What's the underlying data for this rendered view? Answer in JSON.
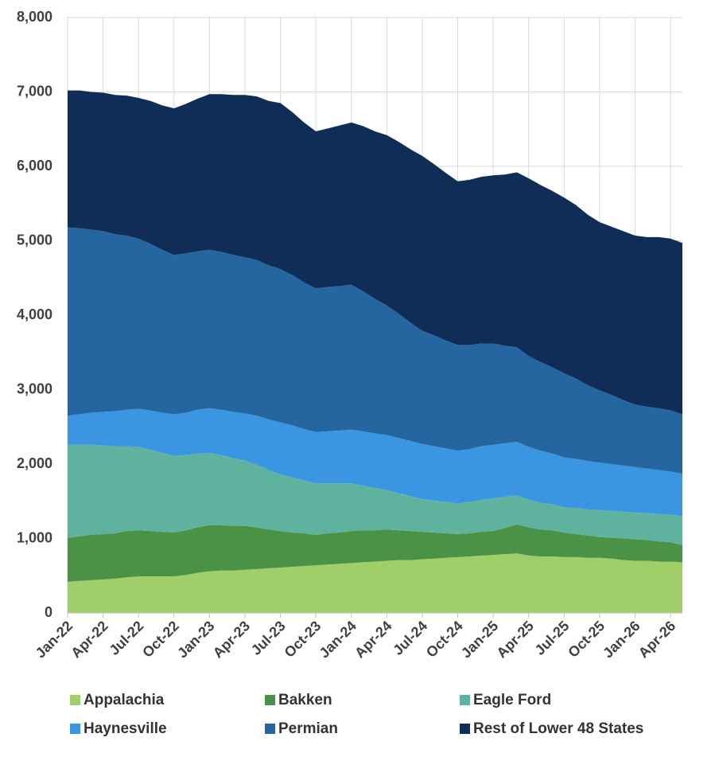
{
  "chart_data": {
    "type": "area",
    "stacked": true,
    "grid": true,
    "legend": "bottom",
    "categories": [
      "Jan-22",
      null,
      null,
      "Apr-22",
      null,
      null,
      "Jul-22",
      null,
      null,
      "Oct-22",
      null,
      null,
      "Jan-23",
      null,
      null,
      "Apr-23",
      null,
      null,
      "Jul-23",
      null,
      null,
      "Oct-23",
      null,
      null,
      "Jan-24",
      null,
      null,
      "Apr-24",
      null,
      null,
      "Jul-24",
      null,
      null,
      "Oct-24",
      null,
      null,
      "Jan-25",
      null,
      null,
      "Apr-25",
      null,
      null,
      "Jul-25",
      null,
      null,
      "Oct-25",
      null,
      null,
      "Jan-26",
      null,
      null,
      "Apr-26",
      null
    ],
    "ylim": [
      0,
      8000
    ],
    "yticks": [
      0,
      {
        "value": 1000,
        "label": "1,000"
      },
      {
        "value": 2000,
        "label": "2,000"
      },
      {
        "value": 3000,
        "label": "3,000"
      },
      {
        "value": 4000,
        "label": "4,000"
      },
      {
        "value": 5000,
        "label": "5,000"
      },
      {
        "value": 6000,
        "label": "6,000"
      },
      {
        "value": 7000,
        "label": "7,000"
      },
      {
        "value": 8000,
        "label": "8,000"
      }
    ],
    "series": [
      {
        "name": "Appalachia",
        "color": "#a0cf6a",
        "values": [
          420,
          430,
          440,
          450,
          460,
          480,
          490,
          490,
          490,
          490,
          510,
          540,
          560,
          570,
          570,
          580,
          590,
          600,
          610,
          620,
          630,
          640,
          650,
          660,
          670,
          680,
          690,
          700,
          710,
          710,
          720,
          730,
          740,
          750,
          760,
          770,
          780,
          790,
          800,
          770,
          760,
          760,
          750,
          750,
          740,
          740,
          730,
          710,
          700,
          700,
          690,
          690,
          680
        ]
      },
      {
        "name": "Bakken",
        "color": "#4a9245",
        "values": [
          590,
          600,
          610,
          610,
          610,
          620,
          620,
          610,
          600,
          590,
          600,
          610,
          620,
          610,
          600,
          590,
          560,
          520,
          490,
          460,
          440,
          410,
          420,
          420,
          430,
          430,
          420,
          420,
          400,
          390,
          370,
          350,
          330,
          310,
          310,
          320,
          320,
          350,
          390,
          380,
          360,
          350,
          330,
          310,
          300,
          280,
          280,
          290,
          290,
          280,
          270,
          260,
          230
        ]
      },
      {
        "name": "Eagle Ford",
        "color": "#5fb39e",
        "values": [
          1250,
          1230,
          1210,
          1190,
          1170,
          1140,
          1120,
          1090,
          1060,
          1030,
          1010,
          990,
          970,
          940,
          910,
          880,
          840,
          800,
          760,
          740,
          710,
          690,
          670,
          660,
          640,
          600,
          570,
          530,
          500,
          470,
          440,
          430,
          420,
          410,
          420,
          430,
          440,
          420,
          390,
          370,
          360,
          350,
          340,
          350,
          350,
          360,
          360,
          360,
          360,
          360,
          370,
          370,
          390
        ]
      },
      {
        "name": "Haynesville",
        "color": "#3a96e0",
        "values": [
          390,
          410,
          430,
          450,
          470,
          490,
          510,
          530,
          540,
          560,
          570,
          590,
          600,
          610,
          620,
          630,
          660,
          680,
          700,
          700,
          690,
          690,
          700,
          710,
          720,
          730,
          730,
          740,
          740,
          740,
          740,
          730,
          720,
          710,
          710,
          720,
          720,
          720,
          720,
          710,
          700,
          680,
          670,
          660,
          650,
          640,
          630,
          620,
          610,
          600,
          590,
          580,
          570
        ]
      },
      {
        "name": "Permian",
        "color": "#2566a0",
        "values": [
          2530,
          2500,
          2460,
          2430,
          2380,
          2340,
          2290,
          2240,
          2190,
          2140,
          2140,
          2130,
          2130,
          2120,
          2110,
          2100,
          2090,
          2070,
          2060,
          2020,
          1970,
          1930,
          1940,
          1940,
          1950,
          1880,
          1810,
          1740,
          1670,
          1590,
          1520,
          1490,
          1450,
          1420,
          1400,
          1380,
          1360,
          1310,
          1270,
          1220,
          1190,
          1160,
          1130,
          1080,
          1020,
          970,
          930,
          880,
          840,
          830,
          830,
          820,
          800
        ]
      },
      {
        "name": "Rest of Lower 48 States",
        "color": "#0f2d57",
        "values": [
          1840,
          1850,
          1850,
          1860,
          1870,
          1880,
          1890,
          1920,
          1940,
          1970,
          2010,
          2050,
          2090,
          2120,
          2150,
          2180,
          2200,
          2210,
          2230,
          2190,
          2150,
          2110,
          2130,
          2160,
          2180,
          2220,
          2250,
          2290,
          2310,
          2330,
          2350,
          2300,
          2250,
          2200,
          2220,
          2240,
          2260,
          2300,
          2350,
          2390,
          2380,
          2370,
          2360,
          2330,
          2290,
          2260,
          2260,
          2270,
          2270,
          2280,
          2300,
          2310,
          2300
        ]
      }
    ]
  }
}
